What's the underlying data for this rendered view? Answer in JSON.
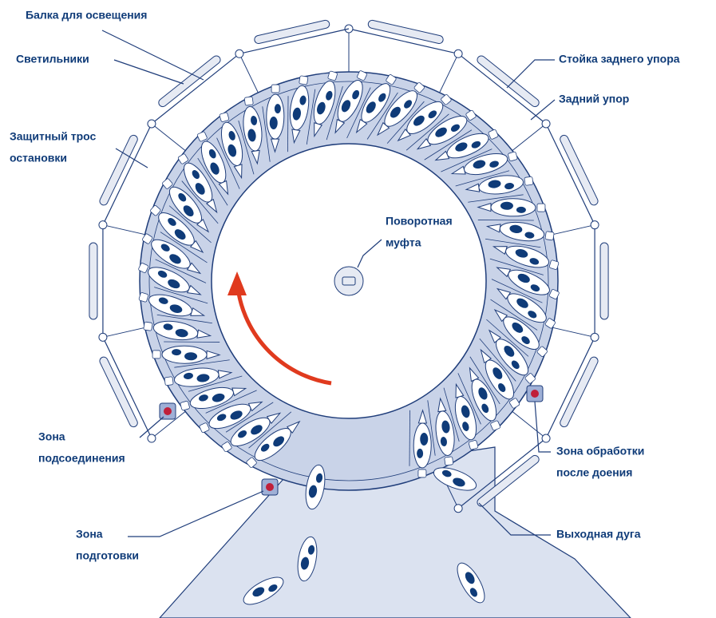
{
  "labels": [
    {
      "lines": [
        "Балка для освещения"
      ]
    },
    {
      "lines": [
        "Светильники"
      ]
    },
    {
      "lines": [
        "Защитный трос",
        "остановки"
      ]
    },
    {
      "lines": [
        "Поворотная",
        "муфта"
      ]
    },
    {
      "lines": [
        "Стойка заднего упора"
      ]
    },
    {
      "lines": [
        "Задний упор"
      ]
    },
    {
      "lines": [
        "Зона",
        "подсоединения"
      ]
    },
    {
      "lines": [
        "Зона обработки",
        "после доения"
      ]
    },
    {
      "lines": [
        "Зона",
        "подготовки"
      ]
    },
    {
      "lines": [
        "Выходная дуга"
      ]
    }
  ]
}
